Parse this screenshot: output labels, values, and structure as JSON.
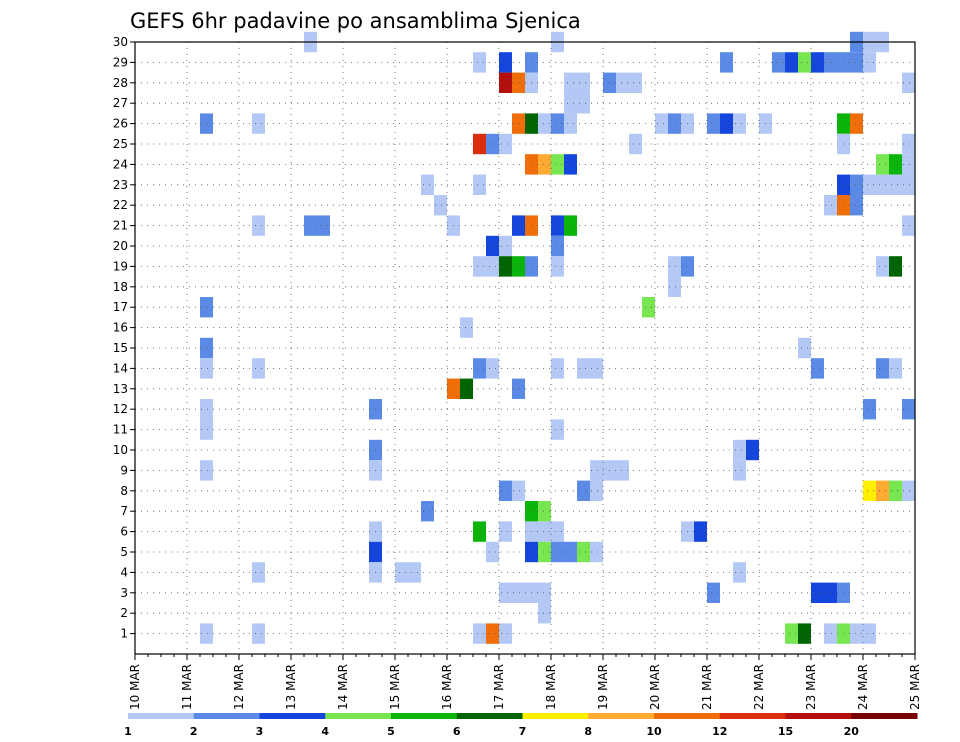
{
  "chart_data": {
    "type": "heatmap",
    "title": "GEFS 6hr padavine po ansamblima Sjenica",
    "xlabel": "",
    "ylabel": "",
    "x_tick_labels": [
      "10 MAR",
      "11 MAR",
      "12 MAR",
      "13 MAR",
      "14 MAR",
      "15 MAR",
      "16 MAR",
      "17 MAR",
      "18 MAR",
      "19 MAR",
      "20 MAR",
      "21 MAR",
      "22 MAR",
      "23 MAR",
      "24 MAR",
      "25 MAR"
    ],
    "y_tick_labels": [
      "1",
      "2",
      "3",
      "4",
      "5",
      "6",
      "7",
      "8",
      "9",
      "10",
      "11",
      "12",
      "13",
      "14",
      "15",
      "16",
      "17",
      "18",
      "19",
      "20",
      "21",
      "22",
      "23",
      "24",
      "25",
      "26",
      "27",
      "28",
      "29",
      "30"
    ],
    "xlim": [
      0,
      60
    ],
    "ylim": [
      0,
      30
    ],
    "legend": {
      "thresholds": [
        "1",
        "2",
        "3",
        "4",
        "5",
        "6",
        "7",
        "8",
        "10",
        "12",
        "15",
        "20"
      ],
      "colors": [
        "#b4c8f5",
        "#5a8ae6",
        "#1446dc",
        "#78e650",
        "#0ab40a",
        "#006400",
        "#fff000",
        "#ffaa32",
        "#f06e0a",
        "#dc2d0a",
        "#b40f0a",
        "#780005"
      ]
    },
    "cells": [
      [
        13.5,
        30,
        1
      ],
      [
        32.5,
        30,
        1
      ],
      [
        55.5,
        30,
        2
      ],
      [
        56.5,
        30,
        1
      ],
      [
        57.5,
        30,
        1
      ],
      [
        26.5,
        29,
        1
      ],
      [
        28.5,
        29,
        3
      ],
      [
        30.5,
        29,
        2
      ],
      [
        45.5,
        29,
        2
      ],
      [
        49.5,
        29,
        2
      ],
      [
        50.5,
        29,
        3
      ],
      [
        51.5,
        29,
        4
      ],
      [
        52.5,
        29,
        3
      ],
      [
        53.5,
        29,
        2
      ],
      [
        54.5,
        29,
        2
      ],
      [
        55.5,
        29,
        2
      ],
      [
        56.5,
        29,
        1
      ],
      [
        28.5,
        28,
        11
      ],
      [
        29.5,
        28,
        9
      ],
      [
        30.5,
        28,
        1
      ],
      [
        33.5,
        28,
        1
      ],
      [
        34.5,
        28,
        1
      ],
      [
        36.5,
        28,
        2
      ],
      [
        37.5,
        28,
        1
      ],
      [
        38.5,
        28,
        1
      ],
      [
        59.5,
        28,
        1
      ],
      [
        33.5,
        27,
        1
      ],
      [
        34.5,
        27,
        1
      ],
      [
        5.5,
        26,
        2
      ],
      [
        9.5,
        26,
        1
      ],
      [
        29.5,
        26,
        9
      ],
      [
        30.5,
        26,
        6
      ],
      [
        31.5,
        26,
        1
      ],
      [
        32.5,
        26,
        2
      ],
      [
        33.5,
        26,
        1
      ],
      [
        40.5,
        26,
        1
      ],
      [
        41.5,
        26,
        2
      ],
      [
        42.5,
        26,
        1
      ],
      [
        44.5,
        26,
        2
      ],
      [
        45.5,
        26,
        3
      ],
      [
        46.5,
        26,
        1
      ],
      [
        48.5,
        26,
        1
      ],
      [
        54.5,
        26,
        5
      ],
      [
        55.5,
        26,
        9
      ],
      [
        26.5,
        25,
        10
      ],
      [
        27.5,
        25,
        2
      ],
      [
        28.5,
        25,
        1
      ],
      [
        38.5,
        25,
        1
      ],
      [
        54.5,
        25,
        1
      ],
      [
        59.5,
        25,
        1
      ],
      [
        30.5,
        24,
        9
      ],
      [
        31.5,
        24,
        8
      ],
      [
        32.5,
        24,
        4
      ],
      [
        33.5,
        24,
        3
      ],
      [
        57.5,
        24,
        4
      ],
      [
        58.5,
        24,
        5
      ],
      [
        59.5,
        24,
        1
      ],
      [
        22.5,
        23,
        1
      ],
      [
        26.5,
        23,
        1
      ],
      [
        54.5,
        23,
        3
      ],
      [
        55.5,
        23,
        2
      ],
      [
        56.5,
        23,
        1
      ],
      [
        57.5,
        23,
        1
      ],
      [
        58.5,
        23,
        1
      ],
      [
        59.5,
        23,
        1
      ],
      [
        23.5,
        22,
        1
      ],
      [
        53.5,
        22,
        1
      ],
      [
        54.5,
        22,
        9
      ],
      [
        55.5,
        22,
        2
      ],
      [
        9.5,
        21,
        1
      ],
      [
        13.5,
        21,
        2
      ],
      [
        14.5,
        21,
        2
      ],
      [
        24.5,
        21,
        1
      ],
      [
        29.5,
        21,
        3
      ],
      [
        30.5,
        21,
        9
      ],
      [
        32.5,
        21,
        3
      ],
      [
        33.5,
        21,
        5
      ],
      [
        59.5,
        21,
        1
      ],
      [
        27.5,
        20,
        3
      ],
      [
        28.5,
        20,
        1
      ],
      [
        32.5,
        20,
        2
      ],
      [
        26.5,
        19,
        1
      ],
      [
        27.5,
        19,
        1
      ],
      [
        28.5,
        19,
        6
      ],
      [
        29.5,
        19,
        5
      ],
      [
        30.5,
        19,
        2
      ],
      [
        32.5,
        19,
        1
      ],
      [
        41.5,
        19,
        1
      ],
      [
        42.5,
        19,
        2
      ],
      [
        57.5,
        19,
        1
      ],
      [
        58.5,
        19,
        6
      ],
      [
        41.5,
        18,
        1
      ],
      [
        5.5,
        17,
        2
      ],
      [
        39.5,
        17,
        4
      ],
      [
        25.5,
        16,
        1
      ],
      [
        5.5,
        15,
        2
      ],
      [
        51.5,
        15,
        1
      ],
      [
        5.5,
        14,
        1
      ],
      [
        9.5,
        14,
        1
      ],
      [
        26.5,
        14,
        2
      ],
      [
        27.5,
        14,
        1
      ],
      [
        32.5,
        14,
        1
      ],
      [
        34.5,
        14,
        1
      ],
      [
        35.5,
        14,
        1
      ],
      [
        52.5,
        14,
        2
      ],
      [
        57.5,
        14,
        2
      ],
      [
        58.5,
        14,
        1
      ],
      [
        24.5,
        13,
        9
      ],
      [
        25.5,
        13,
        6
      ],
      [
        29.5,
        13,
        2
      ],
      [
        5.5,
        12,
        1
      ],
      [
        18.5,
        12,
        2
      ],
      [
        56.5,
        12,
        2
      ],
      [
        59.5,
        12,
        2
      ],
      [
        5.5,
        11,
        1
      ],
      [
        32.5,
        11,
        1
      ],
      [
        18.5,
        10,
        2
      ],
      [
        46.5,
        10,
        1
      ],
      [
        47.5,
        10,
        3
      ],
      [
        5.5,
        9,
        1
      ],
      [
        18.5,
        9,
        1
      ],
      [
        35.5,
        9,
        1
      ],
      [
        36.5,
        9,
        1
      ],
      [
        37.5,
        9,
        1
      ],
      [
        46.5,
        9,
        1
      ],
      [
        28.5,
        8,
        2
      ],
      [
        29.5,
        8,
        1
      ],
      [
        34.5,
        8,
        2
      ],
      [
        35.5,
        8,
        1
      ],
      [
        56.5,
        8,
        7
      ],
      [
        57.5,
        8,
        8
      ],
      [
        58.5,
        8,
        4
      ],
      [
        59.5,
        8,
        1
      ],
      [
        22.5,
        7,
        2
      ],
      [
        30.5,
        7,
        5
      ],
      [
        31.5,
        7,
        4
      ],
      [
        18.5,
        6,
        1
      ],
      [
        26.5,
        6,
        5
      ],
      [
        28.5,
        6,
        1
      ],
      [
        30.5,
        6,
        1
      ],
      [
        31.5,
        6,
        1
      ],
      [
        32.5,
        6,
        1
      ],
      [
        42.5,
        6,
        1
      ],
      [
        43.5,
        6,
        3
      ],
      [
        18.5,
        5,
        3
      ],
      [
        27.5,
        5,
        1
      ],
      [
        30.5,
        5,
        3
      ],
      [
        31.5,
        5,
        4
      ],
      [
        32.5,
        5,
        2
      ],
      [
        33.5,
        5,
        2
      ],
      [
        34.5,
        5,
        4
      ],
      [
        35.5,
        5,
        1
      ],
      [
        9.5,
        4,
        1
      ],
      [
        20.5,
        4,
        1
      ],
      [
        21.5,
        4,
        1
      ],
      [
        18.5,
        4,
        1
      ],
      [
        46.5,
        4,
        1
      ],
      [
        28.5,
        3,
        1
      ],
      [
        29.5,
        3,
        1
      ],
      [
        30.5,
        3,
        1
      ],
      [
        31.5,
        3,
        1
      ],
      [
        44.5,
        3,
        2
      ],
      [
        52.5,
        3,
        3
      ],
      [
        53.5,
        3,
        3
      ],
      [
        54.5,
        3,
        2
      ],
      [
        31.5,
        2,
        1
      ],
      [
        5.5,
        1,
        1
      ],
      [
        9.5,
        1,
        1
      ],
      [
        26.5,
        1,
        1
      ],
      [
        27.5,
        1,
        9
      ],
      [
        28.5,
        1,
        1
      ],
      [
        50.5,
        1,
        4
      ],
      [
        51.5,
        1,
        6
      ],
      [
        53.5,
        1,
        1
      ],
      [
        54.5,
        1,
        4
      ],
      [
        55.5,
        1,
        1
      ],
      [
        56.5,
        1,
        1
      ]
    ]
  }
}
